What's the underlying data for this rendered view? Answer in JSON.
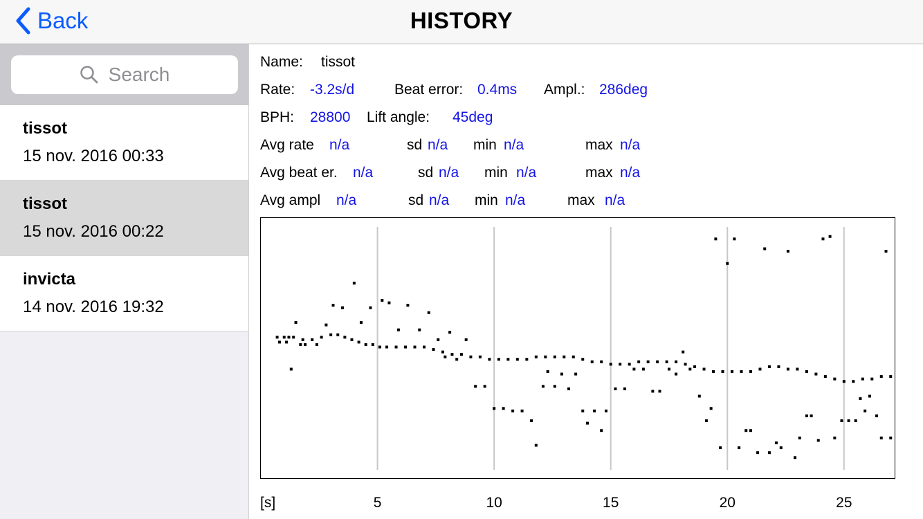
{
  "header": {
    "back_label": "Back",
    "title": "HISTORY"
  },
  "search": {
    "placeholder": "Search"
  },
  "history": [
    {
      "name": "tissot",
      "date": "15 nov. 2016 00:33"
    },
    {
      "name": "tissot",
      "date": "15 nov. 2016 00:22"
    },
    {
      "name": "invicta",
      "date": "14 nov. 2016 19:32"
    }
  ],
  "details": {
    "name_label": "Name:",
    "name_value": "tissot",
    "rate_label": "Rate:",
    "rate_value": "-3.2s/d",
    "beat_error_label": "Beat error:",
    "beat_error_value": "0.4ms",
    "ampl_label": "Ampl.:",
    "ampl_value": "286deg",
    "bph_label": "BPH:",
    "bph_value": "28800",
    "lift_angle_label": "Lift angle:",
    "lift_angle_value": "45deg",
    "avg_rate": {
      "label": "Avg rate",
      "value": "n/a",
      "sd_label": "sd",
      "sd": "n/a",
      "min_label": "min",
      "min": "n/a",
      "max_label": "max",
      "max": "n/a"
    },
    "avg_beat": {
      "label": "Avg beat er.",
      "value": "n/a",
      "sd_label": "sd",
      "sd": "n/a",
      "min_label": "min",
      "min": "n/a",
      "max_label": "max",
      "max": "n/a"
    },
    "avg_ampl": {
      "label": "Avg ampl",
      "value": "n/a",
      "sd_label": "sd",
      "sd": "n/a",
      "min_label": "min",
      "min": "n/a",
      "max_label": "max",
      "max": "n/a"
    }
  },
  "colors": {
    "accent": "#0a5cff",
    "value": "#1414e6",
    "selected_row": "#d9d9d9"
  },
  "chart_data": {
    "type": "scatter",
    "xlabel": "[s]",
    "xlim": [
      0,
      27.2
    ],
    "ylim": [
      0,
      1
    ],
    "x_ticks": [
      5,
      10,
      15,
      20,
      25
    ],
    "grid": "vertical",
    "series": [
      {
        "points": [
          [
            0.7,
            0.54
          ],
          [
            1.0,
            0.54
          ],
          [
            1.2,
            0.54
          ],
          [
            1.4,
            0.54
          ],
          [
            1.8,
            0.53
          ],
          [
            2.2,
            0.53
          ],
          [
            2.6,
            0.54
          ],
          [
            3.0,
            0.55
          ],
          [
            3.3,
            0.55
          ],
          [
            3.6,
            0.54
          ],
          [
            3.9,
            0.53
          ],
          [
            4.2,
            0.52
          ],
          [
            4.5,
            0.51
          ],
          [
            4.8,
            0.51
          ],
          [
            5.1,
            0.5
          ],
          [
            5.4,
            0.5
          ],
          [
            5.8,
            0.5
          ],
          [
            6.2,
            0.5
          ],
          [
            6.6,
            0.5
          ],
          [
            7.0,
            0.5
          ],
          [
            7.4,
            0.49
          ],
          [
            7.8,
            0.48
          ],
          [
            8.2,
            0.47
          ],
          [
            8.6,
            0.47
          ],
          [
            9.0,
            0.46
          ],
          [
            9.4,
            0.46
          ],
          [
            9.8,
            0.45
          ],
          [
            10.2,
            0.45
          ],
          [
            10.6,
            0.45
          ],
          [
            11.0,
            0.45
          ],
          [
            11.4,
            0.45
          ],
          [
            11.8,
            0.46
          ],
          [
            12.2,
            0.46
          ],
          [
            12.6,
            0.46
          ],
          [
            13.0,
            0.46
          ],
          [
            13.4,
            0.46
          ],
          [
            13.8,
            0.45
          ],
          [
            14.2,
            0.44
          ],
          [
            14.6,
            0.44
          ],
          [
            15.0,
            0.43
          ],
          [
            15.4,
            0.43
          ],
          [
            15.8,
            0.43
          ],
          [
            16.2,
            0.44
          ],
          [
            16.6,
            0.44
          ],
          [
            17.0,
            0.44
          ],
          [
            17.4,
            0.44
          ],
          [
            17.8,
            0.44
          ],
          [
            18.2,
            0.43
          ],
          [
            18.6,
            0.42
          ],
          [
            19.0,
            0.41
          ],
          [
            19.4,
            0.4
          ],
          [
            19.8,
            0.4
          ],
          [
            20.2,
            0.4
          ],
          [
            20.6,
            0.4
          ],
          [
            21.0,
            0.4
          ],
          [
            21.4,
            0.41
          ],
          [
            21.8,
            0.42
          ],
          [
            22.2,
            0.42
          ],
          [
            22.6,
            0.41
          ],
          [
            23.0,
            0.41
          ],
          [
            23.4,
            0.4
          ],
          [
            23.8,
            0.39
          ],
          [
            24.2,
            0.38
          ],
          [
            24.6,
            0.37
          ],
          [
            25.0,
            0.36
          ],
          [
            25.4,
            0.36
          ],
          [
            25.8,
            0.37
          ],
          [
            26.2,
            0.37
          ],
          [
            26.6,
            0.38
          ],
          [
            27.0,
            0.38
          ],
          [
            0.8,
            0.52
          ],
          [
            1.1,
            0.52
          ],
          [
            1.3,
            0.41
          ],
          [
            1.5,
            0.6
          ],
          [
            1.7,
            0.51
          ],
          [
            1.9,
            0.51
          ],
          [
            2.4,
            0.51
          ],
          [
            2.8,
            0.59
          ],
          [
            3.1,
            0.67
          ],
          [
            3.5,
            0.66
          ],
          [
            4.0,
            0.76
          ],
          [
            4.3,
            0.6
          ],
          [
            4.7,
            0.66
          ],
          [
            5.2,
            0.69
          ],
          [
            5.5,
            0.68
          ],
          [
            5.9,
            0.57
          ],
          [
            6.3,
            0.67
          ],
          [
            6.8,
            0.57
          ],
          [
            7.2,
            0.64
          ],
          [
            7.6,
            0.53
          ],
          [
            7.9,
            0.46
          ],
          [
            8.1,
            0.56
          ],
          [
            8.4,
            0.45
          ],
          [
            8.8,
            0.53
          ],
          [
            9.2,
            0.34
          ],
          [
            9.6,
            0.34
          ],
          [
            10.0,
            0.25
          ],
          [
            10.4,
            0.25
          ],
          [
            10.8,
            0.24
          ],
          [
            11.2,
            0.24
          ],
          [
            11.6,
            0.2
          ],
          [
            11.8,
            0.1
          ],
          [
            12.1,
            0.34
          ],
          [
            12.3,
            0.4
          ],
          [
            12.6,
            0.34
          ],
          [
            12.9,
            0.39
          ],
          [
            13.2,
            0.33
          ],
          [
            13.5,
            0.39
          ],
          [
            13.8,
            0.24
          ],
          [
            14.0,
            0.19
          ],
          [
            14.3,
            0.24
          ],
          [
            14.6,
            0.16
          ],
          [
            14.8,
            0.24
          ],
          [
            15.2,
            0.33
          ],
          [
            15.6,
            0.33
          ],
          [
            16.0,
            0.41
          ],
          [
            16.4,
            0.41
          ],
          [
            16.8,
            0.32
          ],
          [
            17.1,
            0.32
          ],
          [
            17.5,
            0.41
          ],
          [
            17.8,
            0.39
          ],
          [
            18.1,
            0.48
          ],
          [
            18.4,
            0.41
          ],
          [
            18.8,
            0.3
          ],
          [
            19.1,
            0.2
          ],
          [
            19.3,
            0.25
          ],
          [
            19.5,
            0.94
          ],
          [
            19.7,
            0.09
          ],
          [
            20.0,
            0.84
          ],
          [
            20.3,
            0.94
          ],
          [
            20.5,
            0.09
          ],
          [
            20.8,
            0.16
          ],
          [
            21.0,
            0.16
          ],
          [
            21.3,
            0.07
          ],
          [
            21.6,
            0.9
          ],
          [
            21.8,
            0.07
          ],
          [
            22.1,
            0.11
          ],
          [
            22.3,
            0.09
          ],
          [
            22.6,
            0.89
          ],
          [
            22.9,
            0.05
          ],
          [
            23.1,
            0.13
          ],
          [
            23.4,
            0.22
          ],
          [
            23.6,
            0.22
          ],
          [
            23.9,
            0.12
          ],
          [
            24.1,
            0.94
          ],
          [
            24.4,
            0.95
          ],
          [
            24.6,
            0.13
          ],
          [
            24.9,
            0.2
          ],
          [
            25.2,
            0.2
          ],
          [
            25.5,
            0.2
          ],
          [
            25.7,
            0.29
          ],
          [
            25.9,
            0.24
          ],
          [
            26.1,
            0.3
          ],
          [
            26.4,
            0.22
          ],
          [
            26.6,
            0.13
          ],
          [
            26.8,
            0.89
          ],
          [
            27.0,
            0.13
          ]
        ]
      }
    ]
  }
}
